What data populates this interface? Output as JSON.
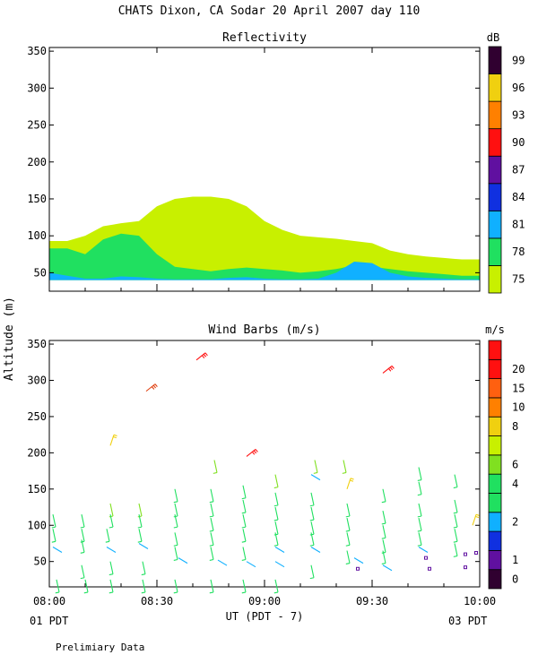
{
  "title": "CHATS Dixon, CA  Sodar  20 April 2007  day 110",
  "ylabel": "Altitude (m)",
  "xlabel": "UT  (PDT - 7)",
  "date_left": "01 PDT",
  "date_right": "03 PDT",
  "footer": "Prelimiary Data",
  "chart_data": [
    {
      "type": "area",
      "title": "Reflectivity",
      "unit": "dB",
      "ylim": [
        25,
        355
      ],
      "yticks": [
        "50",
        "100",
        "150",
        "200",
        "250",
        "300",
        "350"
      ],
      "xticks": [
        "08:00",
        "08:30",
        "09:00",
        "09:30",
        "10:00"
      ],
      "x": [
        0,
        5,
        10,
        15,
        20,
        25,
        30,
        35,
        40,
        45,
        50,
        55,
        60,
        65,
        70,
        75,
        80,
        85,
        90,
        95,
        100,
        105,
        110,
        115,
        120
      ],
      "layers": [
        {
          "level": "75",
          "color": "#c8f000",
          "top": [
            93,
            93,
            100,
            113,
            117,
            120,
            140,
            150,
            153,
            153,
            150,
            140,
            120,
            108,
            100,
            98,
            96,
            93,
            90,
            80,
            75,
            72,
            70,
            68,
            68
          ]
        },
        {
          "level": "78",
          "color": "#20e060",
          "top": [
            83,
            83,
            75,
            95,
            103,
            100,
            75,
            58,
            55,
            52,
            55,
            57,
            55,
            53,
            50,
            52,
            55,
            60,
            58,
            55,
            52,
            50,
            48,
            46,
            46
          ]
        },
        {
          "level": "81",
          "color": "#10b0ff",
          "top": [
            50,
            46,
            42,
            42,
            45,
            44,
            42,
            41,
            41,
            41,
            43,
            44,
            42,
            41,
            41,
            42,
            50,
            65,
            63,
            50,
            45,
            43,
            42,
            41,
            41
          ]
        }
      ],
      "colorbar": [
        {
          "label": "75",
          "color": "#c8f000"
        },
        {
          "label": "78",
          "color": "#20e060"
        },
        {
          "label": "81",
          "color": "#10b0ff"
        },
        {
          "label": "84",
          "color": "#1030e0"
        },
        {
          "label": "87",
          "color": "#6010a0"
        },
        {
          "label": "90",
          "color": "#ff1010"
        },
        {
          "label": "93",
          "color": "#ff8000"
        },
        {
          "label": "96",
          "color": "#f0d010"
        },
        {
          "label": "99",
          "color": "#300030"
        }
      ]
    },
    {
      "type": "scatter",
      "title": "Wind Barbs (m/s)",
      "unit": "m/s",
      "ylim": [
        15,
        355
      ],
      "yticks": [
        "50",
        "100",
        "150",
        "200",
        "250",
        "300",
        "350"
      ],
      "xticks": [
        "08:00",
        "08:30",
        "09:00",
        "09:30",
        "10:00"
      ],
      "colorbar": [
        {
          "label": "0",
          "color": "#300030"
        },
        {
          "label": "1",
          "color": "#6010a0"
        },
        {
          "label": "",
          "color": "#1030e0"
        },
        {
          "label": "2",
          "color": "#10b0ff"
        },
        {
          "label": "",
          "color": "#20e060"
        },
        {
          "label": "4",
          "color": "#20e060"
        },
        {
          "label": "6",
          "color": "#80e020"
        },
        {
          "label": "",
          "color": "#c8f000"
        },
        {
          "label": "8",
          "color": "#f0d010"
        },
        {
          "label": "10",
          "color": "#ff8000"
        },
        {
          "label": "15",
          "color": "#ff6010"
        },
        {
          "label": "20",
          "color": "#ff1010"
        },
        {
          "label": "",
          "color": "#ff1010"
        }
      ],
      "points": [
        {
          "t": 1,
          "h": 115,
          "s": 4
        },
        {
          "t": 1,
          "h": 95,
          "s": 4
        },
        {
          "t": 1,
          "h": 70,
          "s": 2
        },
        {
          "t": 2,
          "h": 25,
          "s": 4
        },
        {
          "t": 9,
          "h": 115,
          "s": 4
        },
        {
          "t": 9,
          "h": 95,
          "s": 4
        },
        {
          "t": 9,
          "h": 80,
          "s": 4
        },
        {
          "t": 9,
          "h": 45,
          "s": 4
        },
        {
          "t": 10,
          "h": 25,
          "s": 4
        },
        {
          "t": 17,
          "h": 210,
          "s": 8
        },
        {
          "t": 17,
          "h": 130,
          "s": 6
        },
        {
          "t": 17,
          "h": 115,
          "s": 4
        },
        {
          "t": 16,
          "h": 95,
          "s": 4
        },
        {
          "t": 16,
          "h": 70,
          "s": 2
        },
        {
          "t": 17,
          "h": 50,
          "s": 4
        },
        {
          "t": 17,
          "h": 25,
          "s": 4
        },
        {
          "t": 27,
          "h": 285,
          "s": 15
        },
        {
          "t": 25,
          "h": 130,
          "s": 6
        },
        {
          "t": 25,
          "h": 115,
          "s": 4
        },
        {
          "t": 25,
          "h": 95,
          "s": 4
        },
        {
          "t": 25,
          "h": 75,
          "s": 2
        },
        {
          "t": 26,
          "h": 50,
          "s": 4
        },
        {
          "t": 26,
          "h": 25,
          "s": 4
        },
        {
          "t": 35,
          "h": 150,
          "s": 4
        },
        {
          "t": 35,
          "h": 130,
          "s": 4
        },
        {
          "t": 35,
          "h": 115,
          "s": 4
        },
        {
          "t": 35,
          "h": 90,
          "s": 4
        },
        {
          "t": 35,
          "h": 70,
          "s": 4
        },
        {
          "t": 36,
          "h": 55,
          "s": 2
        },
        {
          "t": 35,
          "h": 25,
          "s": 4
        },
        {
          "t": 41,
          "h": 328,
          "s": 20
        },
        {
          "t": 46,
          "h": 190,
          "s": 6
        },
        {
          "t": 45,
          "h": 150,
          "s": 4
        },
        {
          "t": 45,
          "h": 130,
          "s": 4
        },
        {
          "t": 45,
          "h": 110,
          "s": 4
        },
        {
          "t": 45,
          "h": 90,
          "s": 4
        },
        {
          "t": 45,
          "h": 70,
          "s": 4
        },
        {
          "t": 47,
          "h": 52,
          "s": 2
        },
        {
          "t": 45,
          "h": 25,
          "s": 4
        },
        {
          "t": 55,
          "h": 195,
          "s": 20
        },
        {
          "t": 54,
          "h": 155,
          "s": 4
        },
        {
          "t": 54,
          "h": 135,
          "s": 4
        },
        {
          "t": 54,
          "h": 115,
          "s": 4
        },
        {
          "t": 54,
          "h": 95,
          "s": 4
        },
        {
          "t": 54,
          "h": 70,
          "s": 4
        },
        {
          "t": 55,
          "h": 50,
          "s": 2
        },
        {
          "t": 54,
          "h": 25,
          "s": 4
        },
        {
          "t": 63,
          "h": 170,
          "s": 6
        },
        {
          "t": 63,
          "h": 145,
          "s": 4
        },
        {
          "t": 63,
          "h": 125,
          "s": 4
        },
        {
          "t": 63,
          "h": 105,
          "s": 4
        },
        {
          "t": 63,
          "h": 90,
          "s": 4
        },
        {
          "t": 63,
          "h": 70,
          "s": 2
        },
        {
          "t": 63,
          "h": 50,
          "s": 2
        },
        {
          "t": 63,
          "h": 25,
          "s": 4
        },
        {
          "t": 74,
          "h": 190,
          "s": 6
        },
        {
          "t": 73,
          "h": 170,
          "s": 2
        },
        {
          "t": 73,
          "h": 145,
          "s": 4
        },
        {
          "t": 73,
          "h": 125,
          "s": 4
        },
        {
          "t": 73,
          "h": 105,
          "s": 4
        },
        {
          "t": 73,
          "h": 90,
          "s": 4
        },
        {
          "t": 73,
          "h": 70,
          "s": 2
        },
        {
          "t": 73,
          "h": 45,
          "s": 4
        },
        {
          "t": 82,
          "h": 190,
          "s": 6
        },
        {
          "t": 83,
          "h": 150,
          "s": 8
        },
        {
          "t": 83,
          "h": 130,
          "s": 4
        },
        {
          "t": 83,
          "h": 110,
          "s": 4
        },
        {
          "t": 83,
          "h": 90,
          "s": 4
        },
        {
          "t": 83,
          "h": 65,
          "s": 4
        },
        {
          "t": 85,
          "h": 55,
          "s": 2
        },
        {
          "t": 86,
          "h": 40,
          "s": 1
        },
        {
          "t": 93,
          "h": 310,
          "s": 20
        },
        {
          "t": 93,
          "h": 150,
          "s": 4
        },
        {
          "t": 93,
          "h": 120,
          "s": 4
        },
        {
          "t": 93,
          "h": 100,
          "s": 4
        },
        {
          "t": 93,
          "h": 80,
          "s": 4
        },
        {
          "t": 93,
          "h": 65,
          "s": 4
        },
        {
          "t": 93,
          "h": 45,
          "s": 2
        },
        {
          "t": 103,
          "h": 180,
          "s": 4
        },
        {
          "t": 103,
          "h": 160,
          "s": 4
        },
        {
          "t": 103,
          "h": 130,
          "s": 4
        },
        {
          "t": 103,
          "h": 110,
          "s": 4
        },
        {
          "t": 103,
          "h": 90,
          "s": 4
        },
        {
          "t": 103,
          "h": 70,
          "s": 2
        },
        {
          "t": 105,
          "h": 55,
          "s": 1
        },
        {
          "t": 106,
          "h": 40,
          "s": 1
        },
        {
          "t": 113,
          "h": 170,
          "s": 4
        },
        {
          "t": 113,
          "h": 135,
          "s": 4
        },
        {
          "t": 113,
          "h": 115,
          "s": 4
        },
        {
          "t": 113,
          "h": 95,
          "s": 4
        },
        {
          "t": 113,
          "h": 75,
          "s": 4
        },
        {
          "t": 116,
          "h": 60,
          "s": 1
        },
        {
          "t": 116,
          "h": 42,
          "s": 1
        },
        {
          "t": 118,
          "h": 100,
          "s": 8
        },
        {
          "t": 119,
          "h": 62,
          "s": 1
        }
      ]
    }
  ]
}
